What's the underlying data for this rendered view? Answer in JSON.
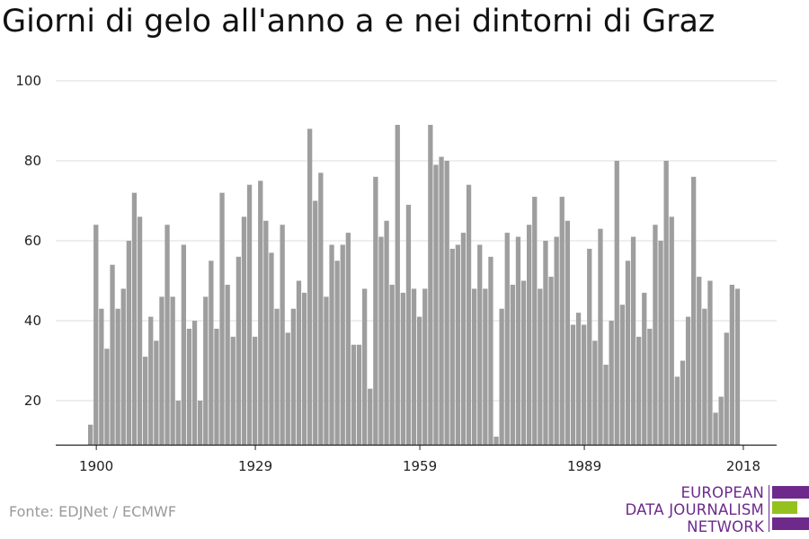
{
  "header": {
    "title": "Giorni di gelo all'anno a e nei dintorni di Graz"
  },
  "footer": {
    "source": "Fonte: EDJNet / ECMWF"
  },
  "logo": {
    "line1": "EUROPEAN",
    "line2": "DATA JOURNALISM",
    "line3": "NETWORK",
    "colors": [
      "#6d2a8b",
      "#95c11f"
    ]
  },
  "chart_data": {
    "type": "bar",
    "title": "Giorni di gelo all'anno a e nei dintorni di Graz",
    "xlabel": "",
    "ylabel": "",
    "x_start": 1899,
    "values": [
      14,
      64,
      43,
      33,
      54,
      43,
      48,
      60,
      72,
      66,
      31,
      41,
      35,
      46,
      64,
      46,
      20,
      59,
      38,
      40,
      20,
      46,
      55,
      38,
      72,
      49,
      36,
      56,
      66,
      74,
      36,
      75,
      65,
      57,
      43,
      64,
      37,
      43,
      50,
      47,
      88,
      70,
      77,
      46,
      59,
      55,
      59,
      62,
      34,
      34,
      48,
      23,
      76,
      61,
      65,
      49,
      89,
      47,
      69,
      48,
      41,
      48,
      89,
      79,
      81,
      80,
      58,
      59,
      62,
      74,
      48,
      59,
      48,
      56,
      11,
      43,
      62,
      49,
      61,
      50,
      64,
      71,
      48,
      60,
      51,
      61,
      71,
      65,
      39,
      42,
      39,
      58,
      35,
      63,
      29,
      40,
      80,
      44,
      55,
      61,
      36,
      47,
      38,
      64,
      60,
      80,
      66,
      26,
      30,
      41,
      76,
      51,
      43,
      50,
      17,
      21,
      37,
      49,
      48
    ],
    "xticks": [
      "1900",
      "1929",
      "1959",
      "1989",
      "2018"
    ],
    "xtick_years": [
      1900,
      1929,
      1959,
      1989,
      2018
    ],
    "yticks": [
      "20",
      "40",
      "60",
      "80",
      "100"
    ],
    "ylim": [
      9,
      100
    ],
    "grid": true,
    "bar_color": "#9e9e9e",
    "grid_color": "#dddddd",
    "axis_color": "#222222"
  }
}
